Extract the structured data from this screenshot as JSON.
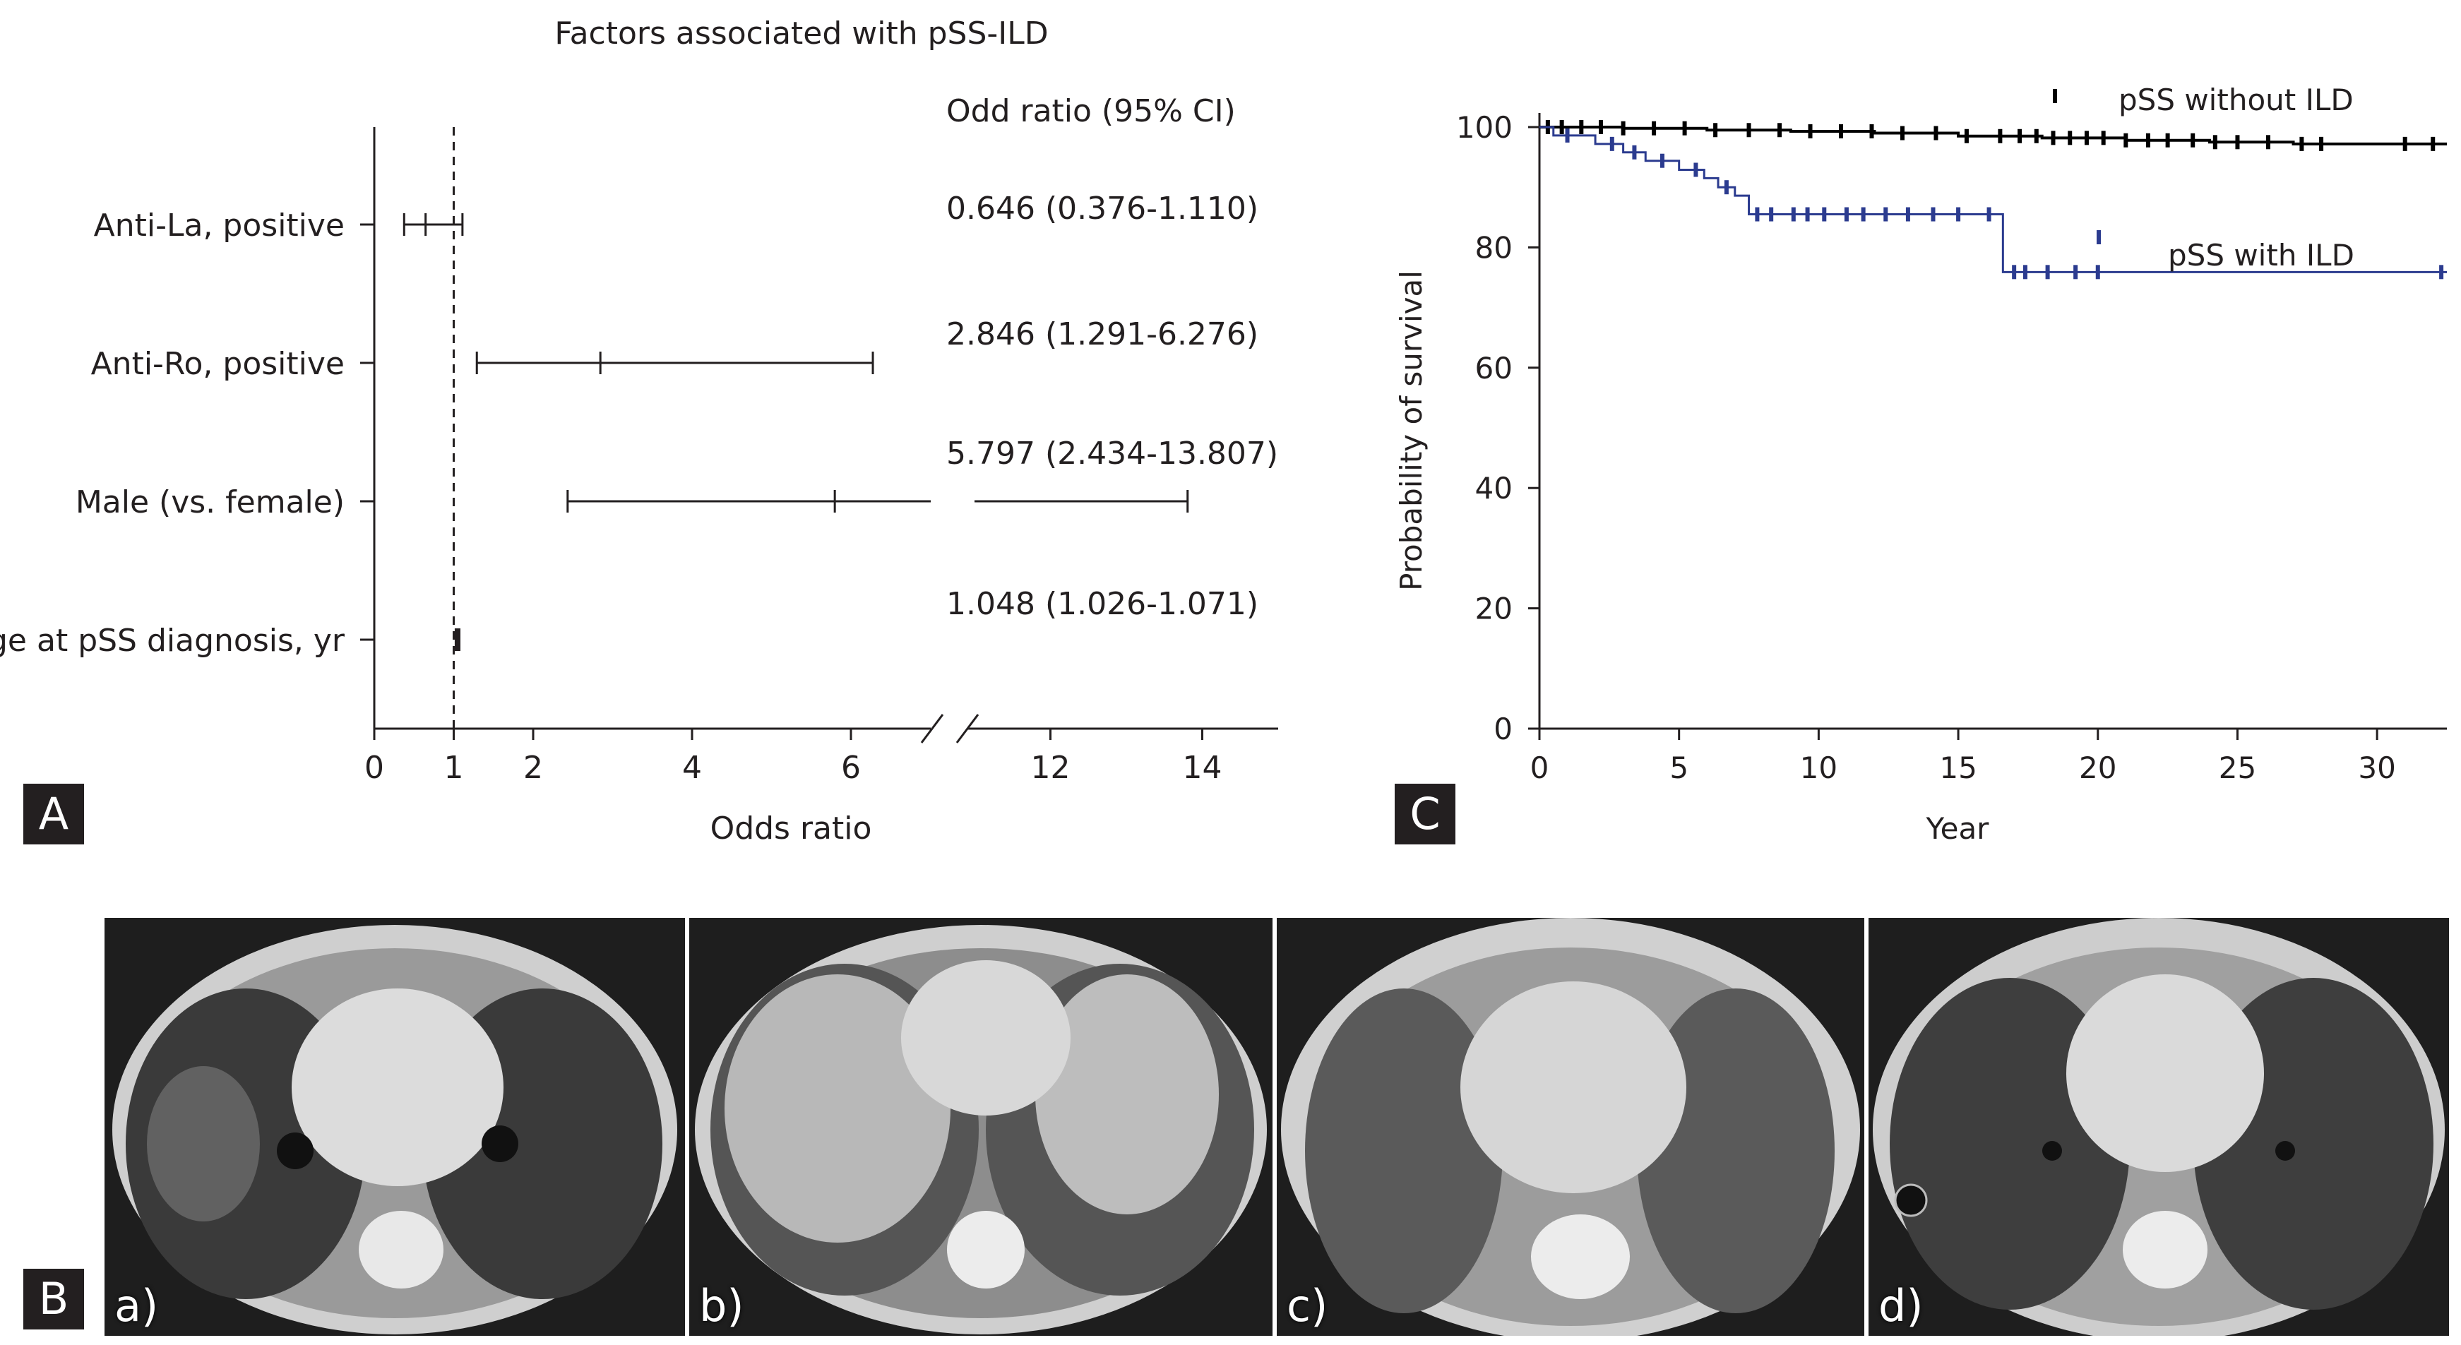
{
  "panel_labels": {
    "a": "A",
    "b": "B",
    "c": "C"
  },
  "chart_data": [
    {
      "type": "forest",
      "title": "Factors associated with pSS-ILD",
      "column_header": "Odd ratio (95% CI)",
      "xlabel": "Odds ratio",
      "x_ticks": [
        "0",
        "1",
        "2",
        "4",
        "6",
        "12",
        "14"
      ],
      "axis_break": [
        7,
        11
      ],
      "reference_line": 1,
      "rows": [
        {
          "label": "Anti-La, positive",
          "or": 0.646,
          "lo": 0.376,
          "hi": 1.11,
          "text": "0.646 (0.376-1.110)"
        },
        {
          "label": "Anti-Ro, positive",
          "or": 2.846,
          "lo": 1.291,
          "hi": 6.276,
          "text": "2.846 (1.291-6.276)"
        },
        {
          "label": "Male (vs. female)",
          "or": 5.797,
          "lo": 2.434,
          "hi": 13.807,
          "text": "5.797 (2.434-13.807)"
        },
        {
          "label": "Age at pSS diagnosis, yr",
          "or": 1.048,
          "lo": 1.026,
          "hi": 1.071,
          "text": "1.048 (1.026-1.071)"
        }
      ]
    },
    {
      "type": "line",
      "subtype": "kaplan-meier",
      "xlabel": "Year",
      "ylabel": "Probability of survival",
      "xlim": [
        0,
        32.5
      ],
      "ylim": [
        0,
        100
      ],
      "x_ticks": [
        "0",
        "5",
        "10",
        "15",
        "20",
        "25",
        "30"
      ],
      "y_ticks": [
        "0",
        "20",
        "40",
        "60",
        "80",
        "100"
      ],
      "series": [
        {
          "name": "pSS without ILD",
          "color": "#000000",
          "steps": [
            [
              0,
              100
            ],
            [
              3,
              99.8
            ],
            [
              6,
              99.5
            ],
            [
              9,
              99.3
            ],
            [
              12,
              99.0
            ],
            [
              15,
              98.5
            ],
            [
              18,
              98.2
            ],
            [
              21,
              97.8
            ],
            [
              24,
              97.5
            ],
            [
              27,
              97.2
            ],
            [
              32.5,
              97.2
            ]
          ],
          "censor_x": [
            0.3,
            0.8,
            1.5,
            2.2,
            3.0,
            4.1,
            5.2,
            6.3,
            7.5,
            8.6,
            9.7,
            10.8,
            11.9,
            13.0,
            14.2,
            15.3,
            16.5,
            17.2,
            17.8,
            18.4,
            19.0,
            19.6,
            20.2,
            21.0,
            21.8,
            22.5,
            23.4,
            24.2,
            25.0,
            26.1,
            27.3,
            28.0,
            31.0,
            32.0
          ]
        },
        {
          "name": "pSS with ILD",
          "color": "#2b3b8f",
          "steps": [
            [
              0,
              100
            ],
            [
              0.5,
              98.6
            ],
            [
              2.0,
              97.2
            ],
            [
              3.0,
              95.8
            ],
            [
              3.8,
              94.4
            ],
            [
              5.0,
              92.9
            ],
            [
              5.9,
              91.5
            ],
            [
              6.4,
              90.0
            ],
            [
              7.0,
              88.6
            ],
            [
              7.5,
              85.5
            ],
            [
              16.6,
              85.5
            ],
            [
              16.6,
              75.9
            ],
            [
              32.5,
              75.9
            ]
          ],
          "censor_x": [
            1.0,
            2.6,
            3.4,
            4.4,
            5.6,
            6.7,
            7.8,
            8.3,
            9.1,
            9.6,
            10.2,
            11.0,
            11.6,
            12.4,
            13.2,
            14.1,
            15.0,
            16.1,
            17.0,
            17.4,
            18.2,
            19.2,
            20.0,
            32.3
          ]
        }
      ]
    }
  ],
  "ct_panels": [
    {
      "label": "a)"
    },
    {
      "label": "b)"
    },
    {
      "label": "c)"
    },
    {
      "label": "d)"
    }
  ]
}
